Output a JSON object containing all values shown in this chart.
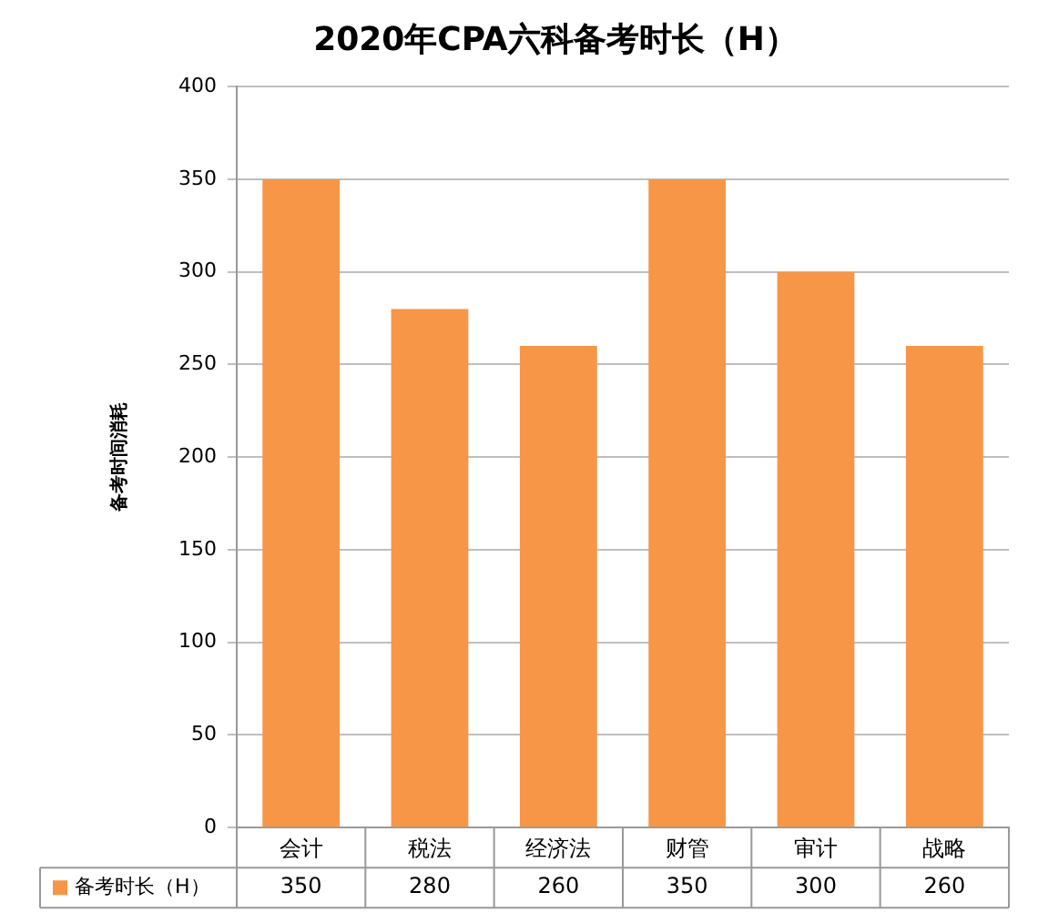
{
  "chart_data": {
    "type": "bar",
    "title": "2020年CPA六科备考时长（H）",
    "ylabel": "备考时间消耗",
    "categories": [
      "会计",
      "税法",
      "经济法",
      "财管",
      "审计",
      "战略"
    ],
    "series": [
      {
        "name": "备考时长（H）",
        "color": "#f79646",
        "values": [
          350,
          280,
          260,
          350,
          300,
          260
        ]
      }
    ],
    "ylim": [
      0,
      400
    ],
    "yticks": [
      0,
      50,
      100,
      150,
      200,
      250,
      300,
      350,
      400
    ],
    "grid": "y",
    "legend": "bottom",
    "data_labels": true
  }
}
